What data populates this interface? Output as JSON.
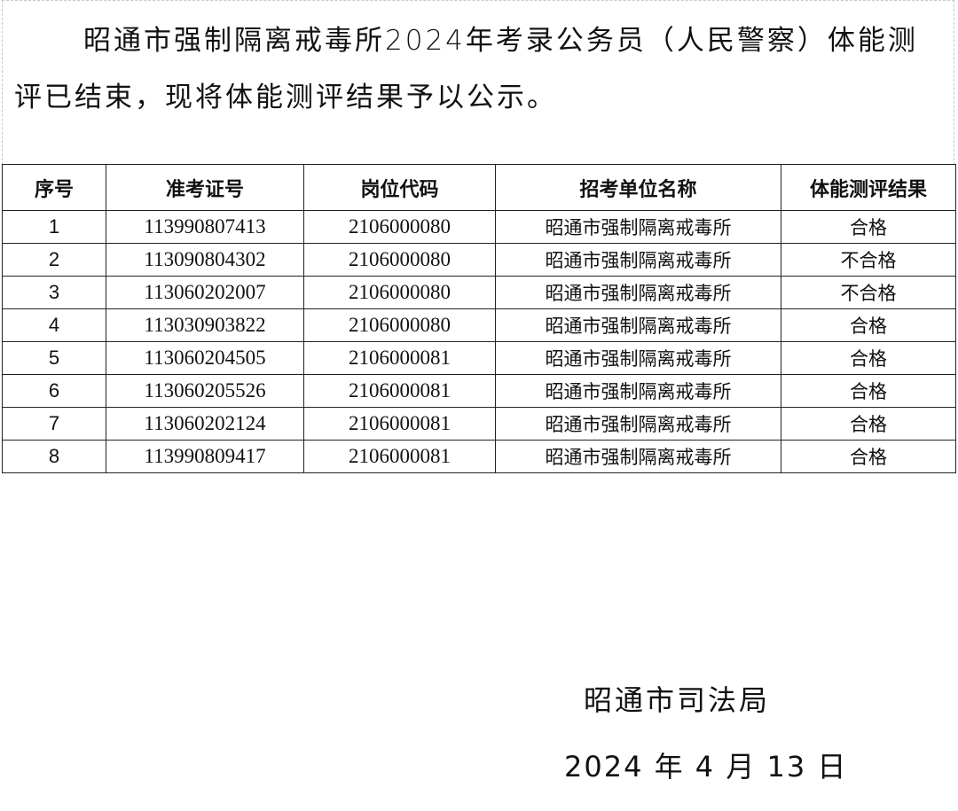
{
  "intro": "昭通市强制隔离戒毒所2024年考录公务员（人民警察）体能测评已结束，现将体能测评结果予以公示。",
  "table": {
    "headers": [
      "序号",
      "准考证号",
      "岗位代码",
      "招考单位名称",
      "体能测评结果"
    ],
    "rows": [
      [
        "1",
        "113990807413",
        "2106000080",
        "昭通市强制隔离戒毒所",
        "合格"
      ],
      [
        "2",
        "113090804302",
        "2106000080",
        "昭通市强制隔离戒毒所",
        "不合格"
      ],
      [
        "3",
        "113060202007",
        "2106000080",
        "昭通市强制隔离戒毒所",
        "不合格"
      ],
      [
        "4",
        "113030903822",
        "2106000080",
        "昭通市强制隔离戒毒所",
        "合格"
      ],
      [
        "5",
        "113060204505",
        "2106000081",
        "昭通市强制隔离戒毒所",
        "合格"
      ],
      [
        "6",
        "113060205526",
        "2106000081",
        "昭通市强制隔离戒毒所",
        "合格"
      ],
      [
        "7",
        "113060202124",
        "2106000081",
        "昭通市强制隔离戒毒所",
        "合格"
      ],
      [
        "8",
        "113990809417",
        "2106000081",
        "昭通市强制隔离戒毒所",
        "合格"
      ]
    ]
  },
  "signature": "昭通市司法局",
  "date": "2024 年 4 月 13 日"
}
